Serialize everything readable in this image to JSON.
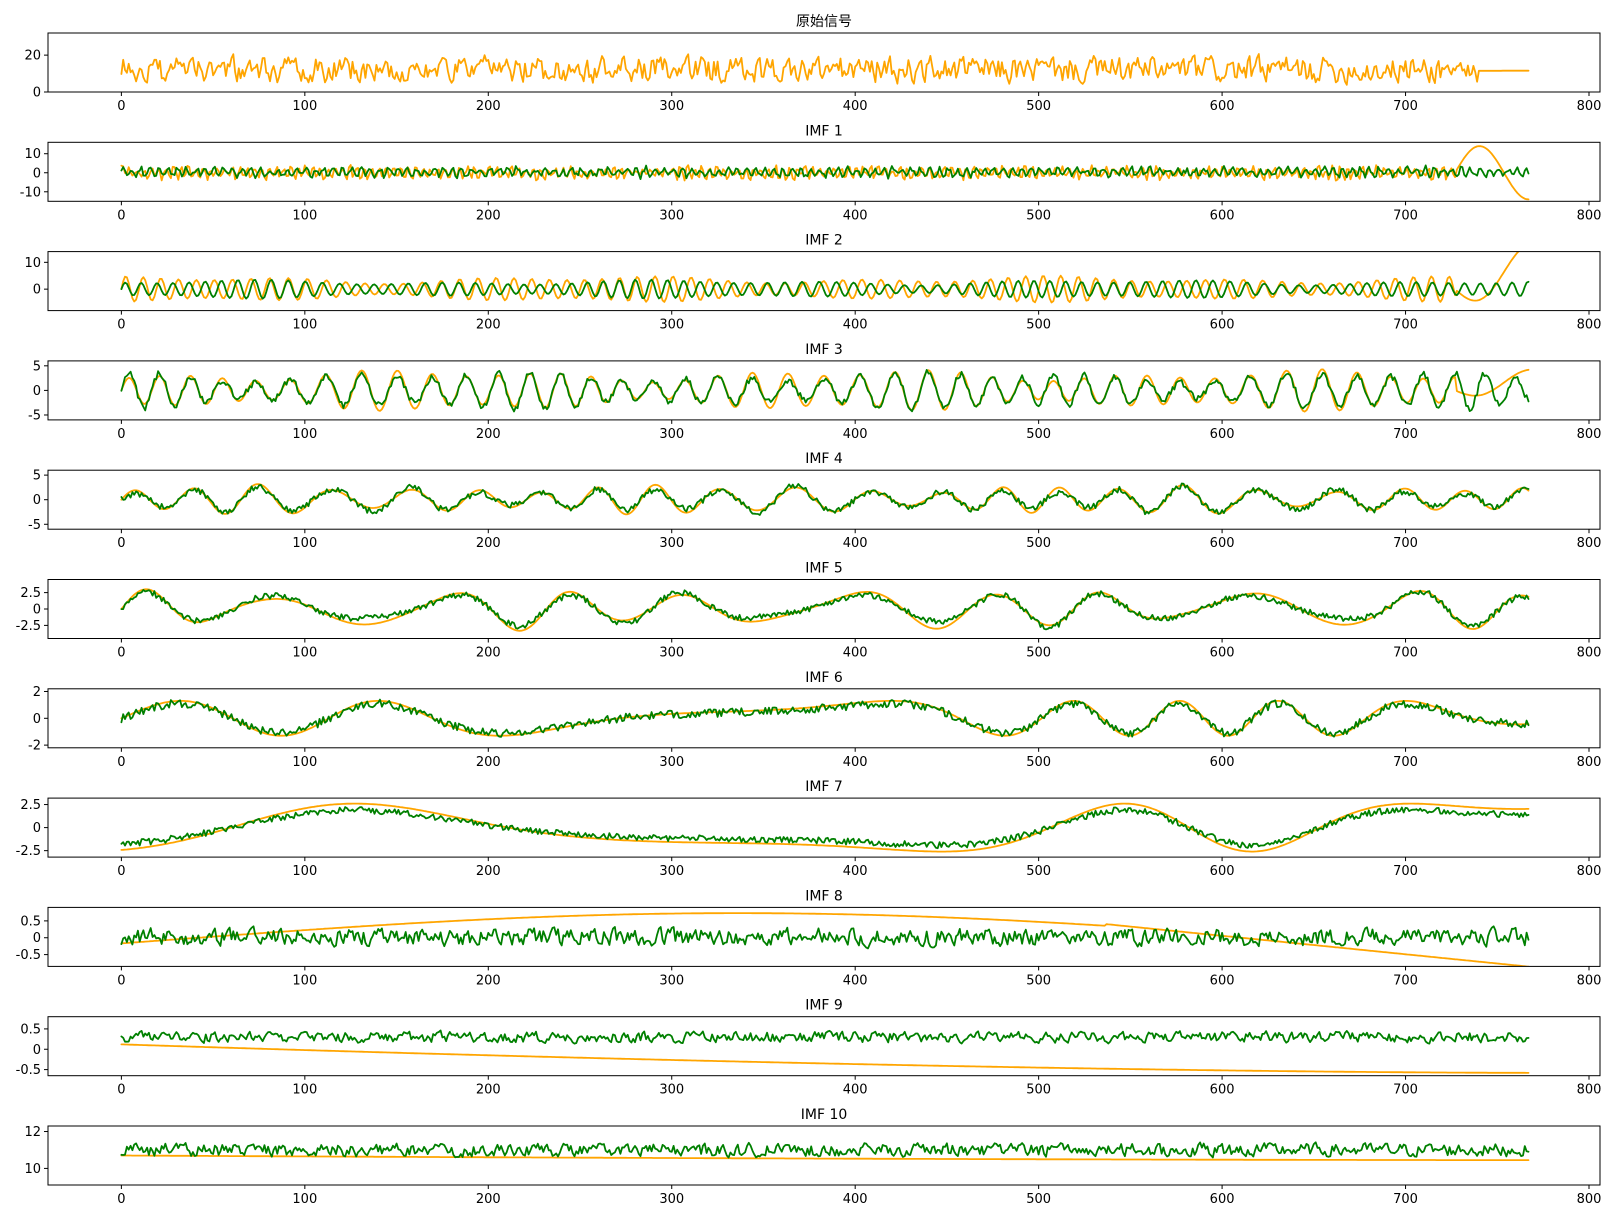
{
  "colors": {
    "primary": "#FFA500",
    "secondary": "#008000"
  },
  "chart_data": [
    {
      "type": "line",
      "title": "原始信号",
      "x_range": [
        0,
        767
      ],
      "xlim": [
        -40,
        806
      ],
      "xticks": [
        0,
        100,
        200,
        300,
        400,
        500,
        600,
        700,
        800
      ],
      "ylim": [
        0,
        32
      ],
      "yticks": [
        0,
        20
      ],
      "series": [
        {
          "color": "#FFA500",
          "style": "noise",
          "base": 12,
          "amp": 7,
          "seed": 3,
          "tail_value": 11.5,
          "tail_from": 740
        }
      ]
    },
    {
      "type": "line",
      "title": "IMF 1",
      "x_range": [
        0,
        767
      ],
      "xlim": [
        -40,
        806
      ],
      "xticks": [
        0,
        100,
        200,
        300,
        400,
        500,
        600,
        700,
        800
      ],
      "ylim": [
        -15,
        16
      ],
      "yticks": [
        -10,
        0,
        10
      ],
      "series": [
        {
          "color": "#FFA500",
          "style": "fast",
          "period": 4,
          "amp": 3.5,
          "seed": 11,
          "end_swing": 14
        },
        {
          "color": "#008000",
          "style": "fast",
          "period": 5,
          "amp": 2.5,
          "seed": 12,
          "offset": 1.5
        }
      ]
    },
    {
      "type": "line",
      "title": "IMF 2",
      "x_range": [
        0,
        767
      ],
      "xlim": [
        -40,
        806
      ],
      "xticks": [
        0,
        100,
        200,
        300,
        400,
        500,
        600,
        700,
        800
      ],
      "ylim": [
        -8,
        14
      ],
      "yticks": [
        0,
        10
      ],
      "series": [
        {
          "color": "#FFA500",
          "style": "wave",
          "period": 10,
          "amp": 3.5,
          "seed": 21,
          "end_swing": 12
        },
        {
          "color": "#008000",
          "style": "wave",
          "period": 9,
          "amp": 2.5,
          "seed": 22
        }
      ]
    },
    {
      "type": "line",
      "title": "IMF 3",
      "x_range": [
        0,
        767
      ],
      "xlim": [
        -40,
        806
      ],
      "xticks": [
        0,
        100,
        200,
        300,
        400,
        500,
        600,
        700,
        800
      ],
      "ylim": [
        -6,
        6
      ],
      "yticks": [
        -5,
        0,
        5
      ],
      "series": [
        {
          "color": "#FFA500",
          "style": "wave",
          "period": 18,
          "amp": 3,
          "seed": 31,
          "end_swing": 3
        },
        {
          "color": "#008000",
          "style": "wave",
          "period": 18,
          "amp": 2.8,
          "seed": 32,
          "jitter": 0.6
        }
      ]
    },
    {
      "type": "line",
      "title": "IMF 4",
      "x_range": [
        0,
        767
      ],
      "xlim": [
        -40,
        806
      ],
      "xticks": [
        0,
        100,
        200,
        300,
        400,
        500,
        600,
        700,
        800
      ],
      "ylim": [
        -6,
        6
      ],
      "yticks": [
        -5,
        0,
        5
      ],
      "series": [
        {
          "color": "#FFA500",
          "style": "wave",
          "period": 36,
          "amp": 2.2,
          "seed": 41
        },
        {
          "color": "#008000",
          "style": "wave",
          "period": 36,
          "amp": 2,
          "seed": 42,
          "jitter": 0.6
        }
      ]
    },
    {
      "type": "line",
      "title": "IMF 5",
      "x_range": [
        0,
        767
      ],
      "xlim": [
        -40,
        806
      ],
      "xticks": [
        0,
        100,
        200,
        300,
        400,
        500,
        600,
        700,
        800
      ],
      "ylim": [
        -4.5,
        4.5
      ],
      "yticks": [
        -2.5,
        0.0,
        2.5
      ],
      "series": [
        {
          "color": "#FFA500",
          "style": "wave",
          "period": 75,
          "amp": 2.3,
          "seed": 51
        },
        {
          "color": "#008000",
          "style": "wave",
          "period": 75,
          "amp": 2.0,
          "seed": 52,
          "jitter": 0.45
        }
      ]
    },
    {
      "type": "line",
      "title": "IMF 6",
      "x_range": [
        0,
        767
      ],
      "xlim": [
        -40,
        806
      ],
      "xticks": [
        0,
        100,
        200,
        300,
        400,
        500,
        600,
        700,
        800
      ],
      "ylim": [
        -2.2,
        2.2
      ],
      "yticks": [
        -2,
        0,
        2
      ],
      "series": [
        {
          "color": "#FFA500",
          "style": "slow",
          "period": 140,
          "amp": 1.3,
          "seed": 61
        },
        {
          "color": "#008000",
          "style": "slow",
          "period": 140,
          "amp": 1.1,
          "seed": 62,
          "jitter": 0.3
        }
      ]
    },
    {
      "type": "line",
      "title": "IMF 7",
      "x_range": [
        0,
        767
      ],
      "xlim": [
        -40,
        806
      ],
      "xticks": [
        0,
        100,
        200,
        300,
        400,
        500,
        600,
        700,
        800
      ],
      "ylim": [
        -3.2,
        3.2
      ],
      "yticks": [
        -2.5,
        0.0,
        2.5
      ],
      "series": [
        {
          "color": "#FFA500",
          "style": "slow",
          "period": 360,
          "amp": 2.6,
          "seed": 71,
          "phase": -1.2
        },
        {
          "color": "#008000",
          "style": "slow",
          "period": 360,
          "amp": 1.9,
          "seed": 72,
          "phase": -1.2,
          "jitter": 0.35
        }
      ]
    },
    {
      "type": "line",
      "title": "IMF 8",
      "x_range": [
        0,
        767
      ],
      "xlim": [
        -40,
        806
      ],
      "xticks": [
        0,
        100,
        200,
        300,
        400,
        500,
        600,
        700,
        800
      ],
      "ylim": [
        -0.85,
        0.9
      ],
      "yticks": [
        -0.5,
        0.0,
        0.5
      ],
      "series": [
        {
          "color": "#FFA500",
          "style": "arc",
          "amp": 0.78,
          "seed": 81
        },
        {
          "color": "#008000",
          "style": "noise",
          "base": 0.02,
          "amp": 0.25,
          "seed": 82
        }
      ]
    },
    {
      "type": "line",
      "title": "IMF 9",
      "x_range": [
        0,
        767
      ],
      "xlim": [
        -40,
        806
      ],
      "xticks": [
        0,
        100,
        200,
        300,
        400,
        500,
        600,
        700,
        800
      ],
      "ylim": [
        -0.65,
        0.8
      ],
      "yticks": [
        -0.5,
        0.0,
        0.5
      ],
      "series": [
        {
          "color": "#FFA500",
          "style": "decay",
          "start": 0.12,
          "end": -0.58,
          "seed": 91
        },
        {
          "color": "#008000",
          "style": "noise",
          "base": 0.3,
          "amp": 0.13,
          "seed": 92
        }
      ]
    },
    {
      "type": "line",
      "title": "IMF 10",
      "x_range": [
        0,
        767
      ],
      "xlim": [
        -40,
        806
      ],
      "xticks": [
        0,
        100,
        200,
        300,
        400,
        500,
        600,
        700,
        800
      ],
      "ylim": [
        9.1,
        12.3
      ],
      "yticks": [
        10,
        12
      ],
      "series": [
        {
          "color": "#FFA500",
          "style": "decay",
          "start": 10.7,
          "end": 10.45,
          "seed": 101
        },
        {
          "color": "#008000",
          "style": "noise",
          "base": 11.0,
          "amp": 0.35,
          "seed": 102
        }
      ]
    }
  ]
}
